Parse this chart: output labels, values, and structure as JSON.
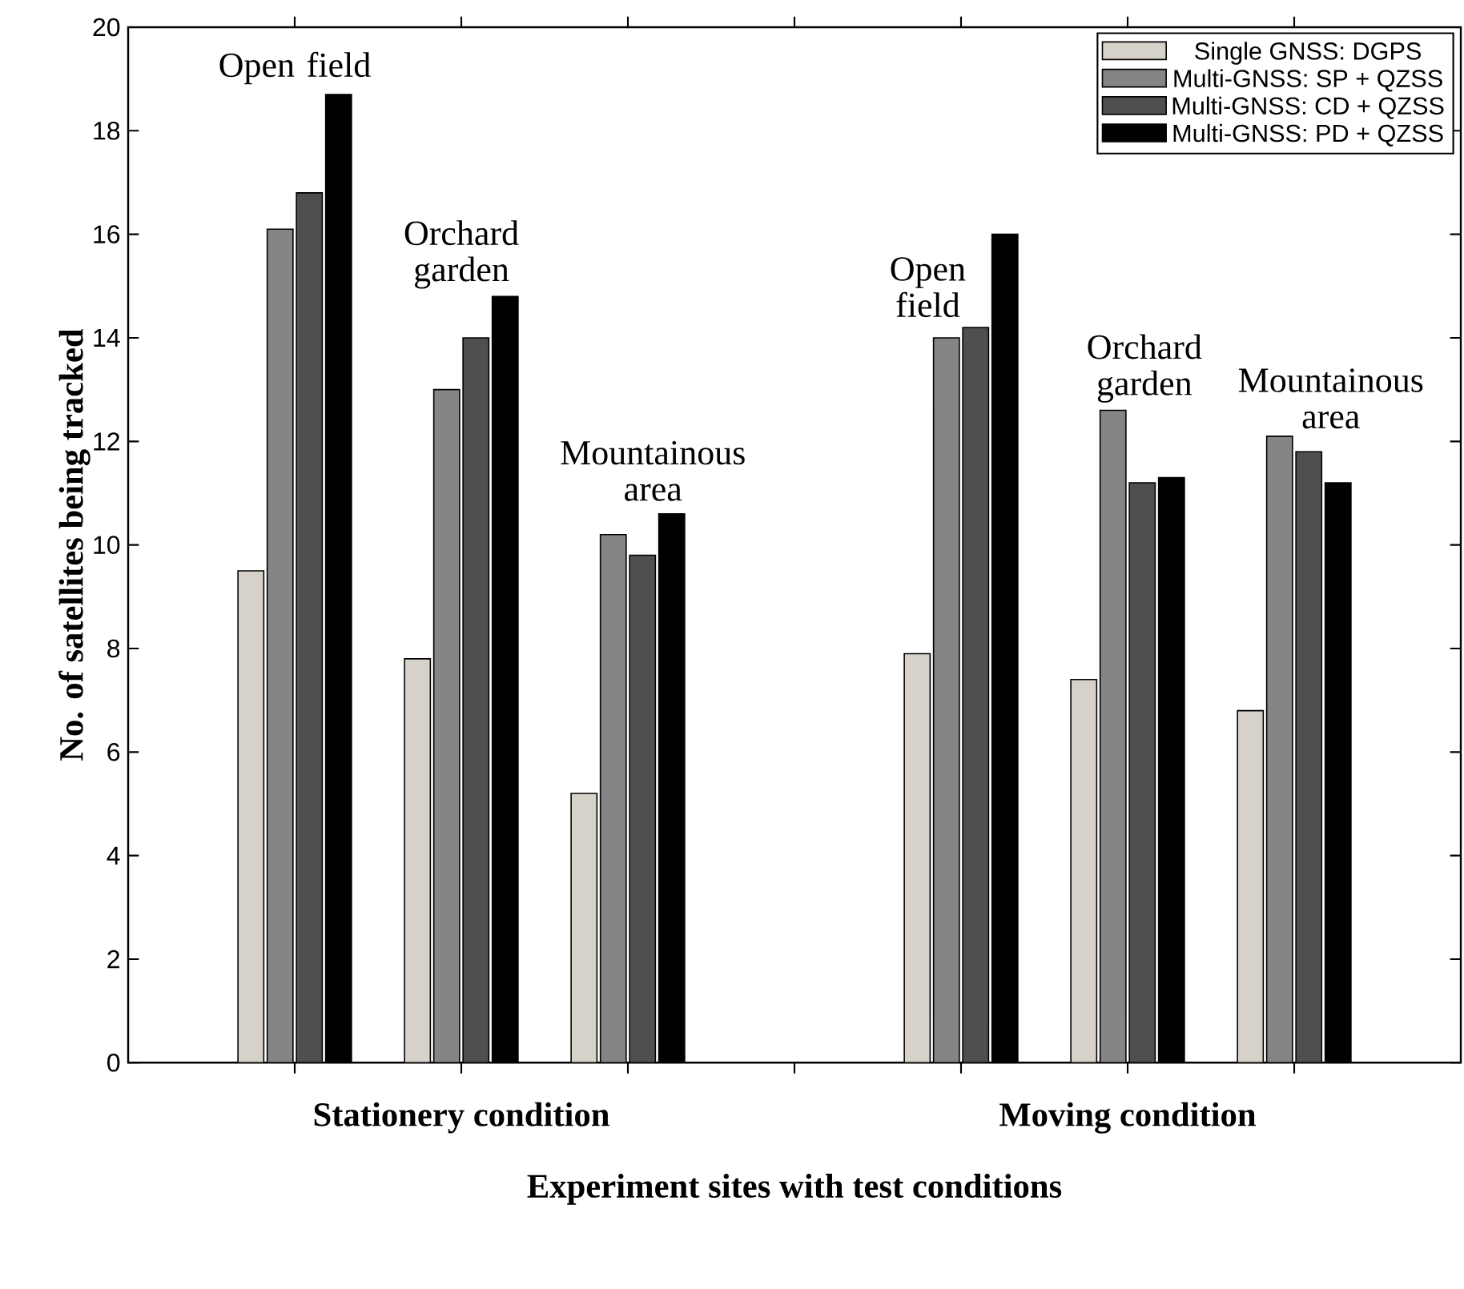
{
  "chart_data": {
    "type": "bar",
    "xlabel": "Experiment sites with test conditions",
    "ylabel": "No. of satellites being tracked",
    "categories": [
      null,
      "Stationery condition",
      null,
      null,
      null,
      "Moving condition",
      null
    ],
    "series": [
      {
        "name": "Single GNSS: DGPS",
        "color": "#d6d2ca",
        "values": [
          9.5,
          7.8,
          5.2,
          0,
          7.9,
          7.4,
          6.8
        ]
      },
      {
        "name": "Multi-GNSS: SP + QZSS",
        "color": "#858585",
        "values": [
          16.1,
          13.0,
          10.2,
          0,
          14.0,
          12.6,
          12.1
        ]
      },
      {
        "name": "Multi-GNSS: CD + QZSS",
        "color": "#4f4f4f",
        "values": [
          16.8,
          14.0,
          9.8,
          0,
          14.2,
          11.2,
          11.8
        ]
      },
      {
        "name": "Multi-GNSS: PD + QZSS",
        "color": "#000000",
        "values": [
          18.7,
          14.8,
          10.6,
          0,
          16.0,
          11.3,
          11.2
        ]
      }
    ],
    "annotations": [
      "Open field",
      "Orchard garden",
      "Mountainous area",
      "Open field",
      "Orchard garden",
      "Mountainous area"
    ],
    "ylim": [
      0,
      20
    ],
    "yticks": [
      0,
      2,
      4,
      6,
      8,
      10,
      12,
      14,
      16,
      18,
      20
    ],
    "legend": "top right",
    "grid": false
  }
}
